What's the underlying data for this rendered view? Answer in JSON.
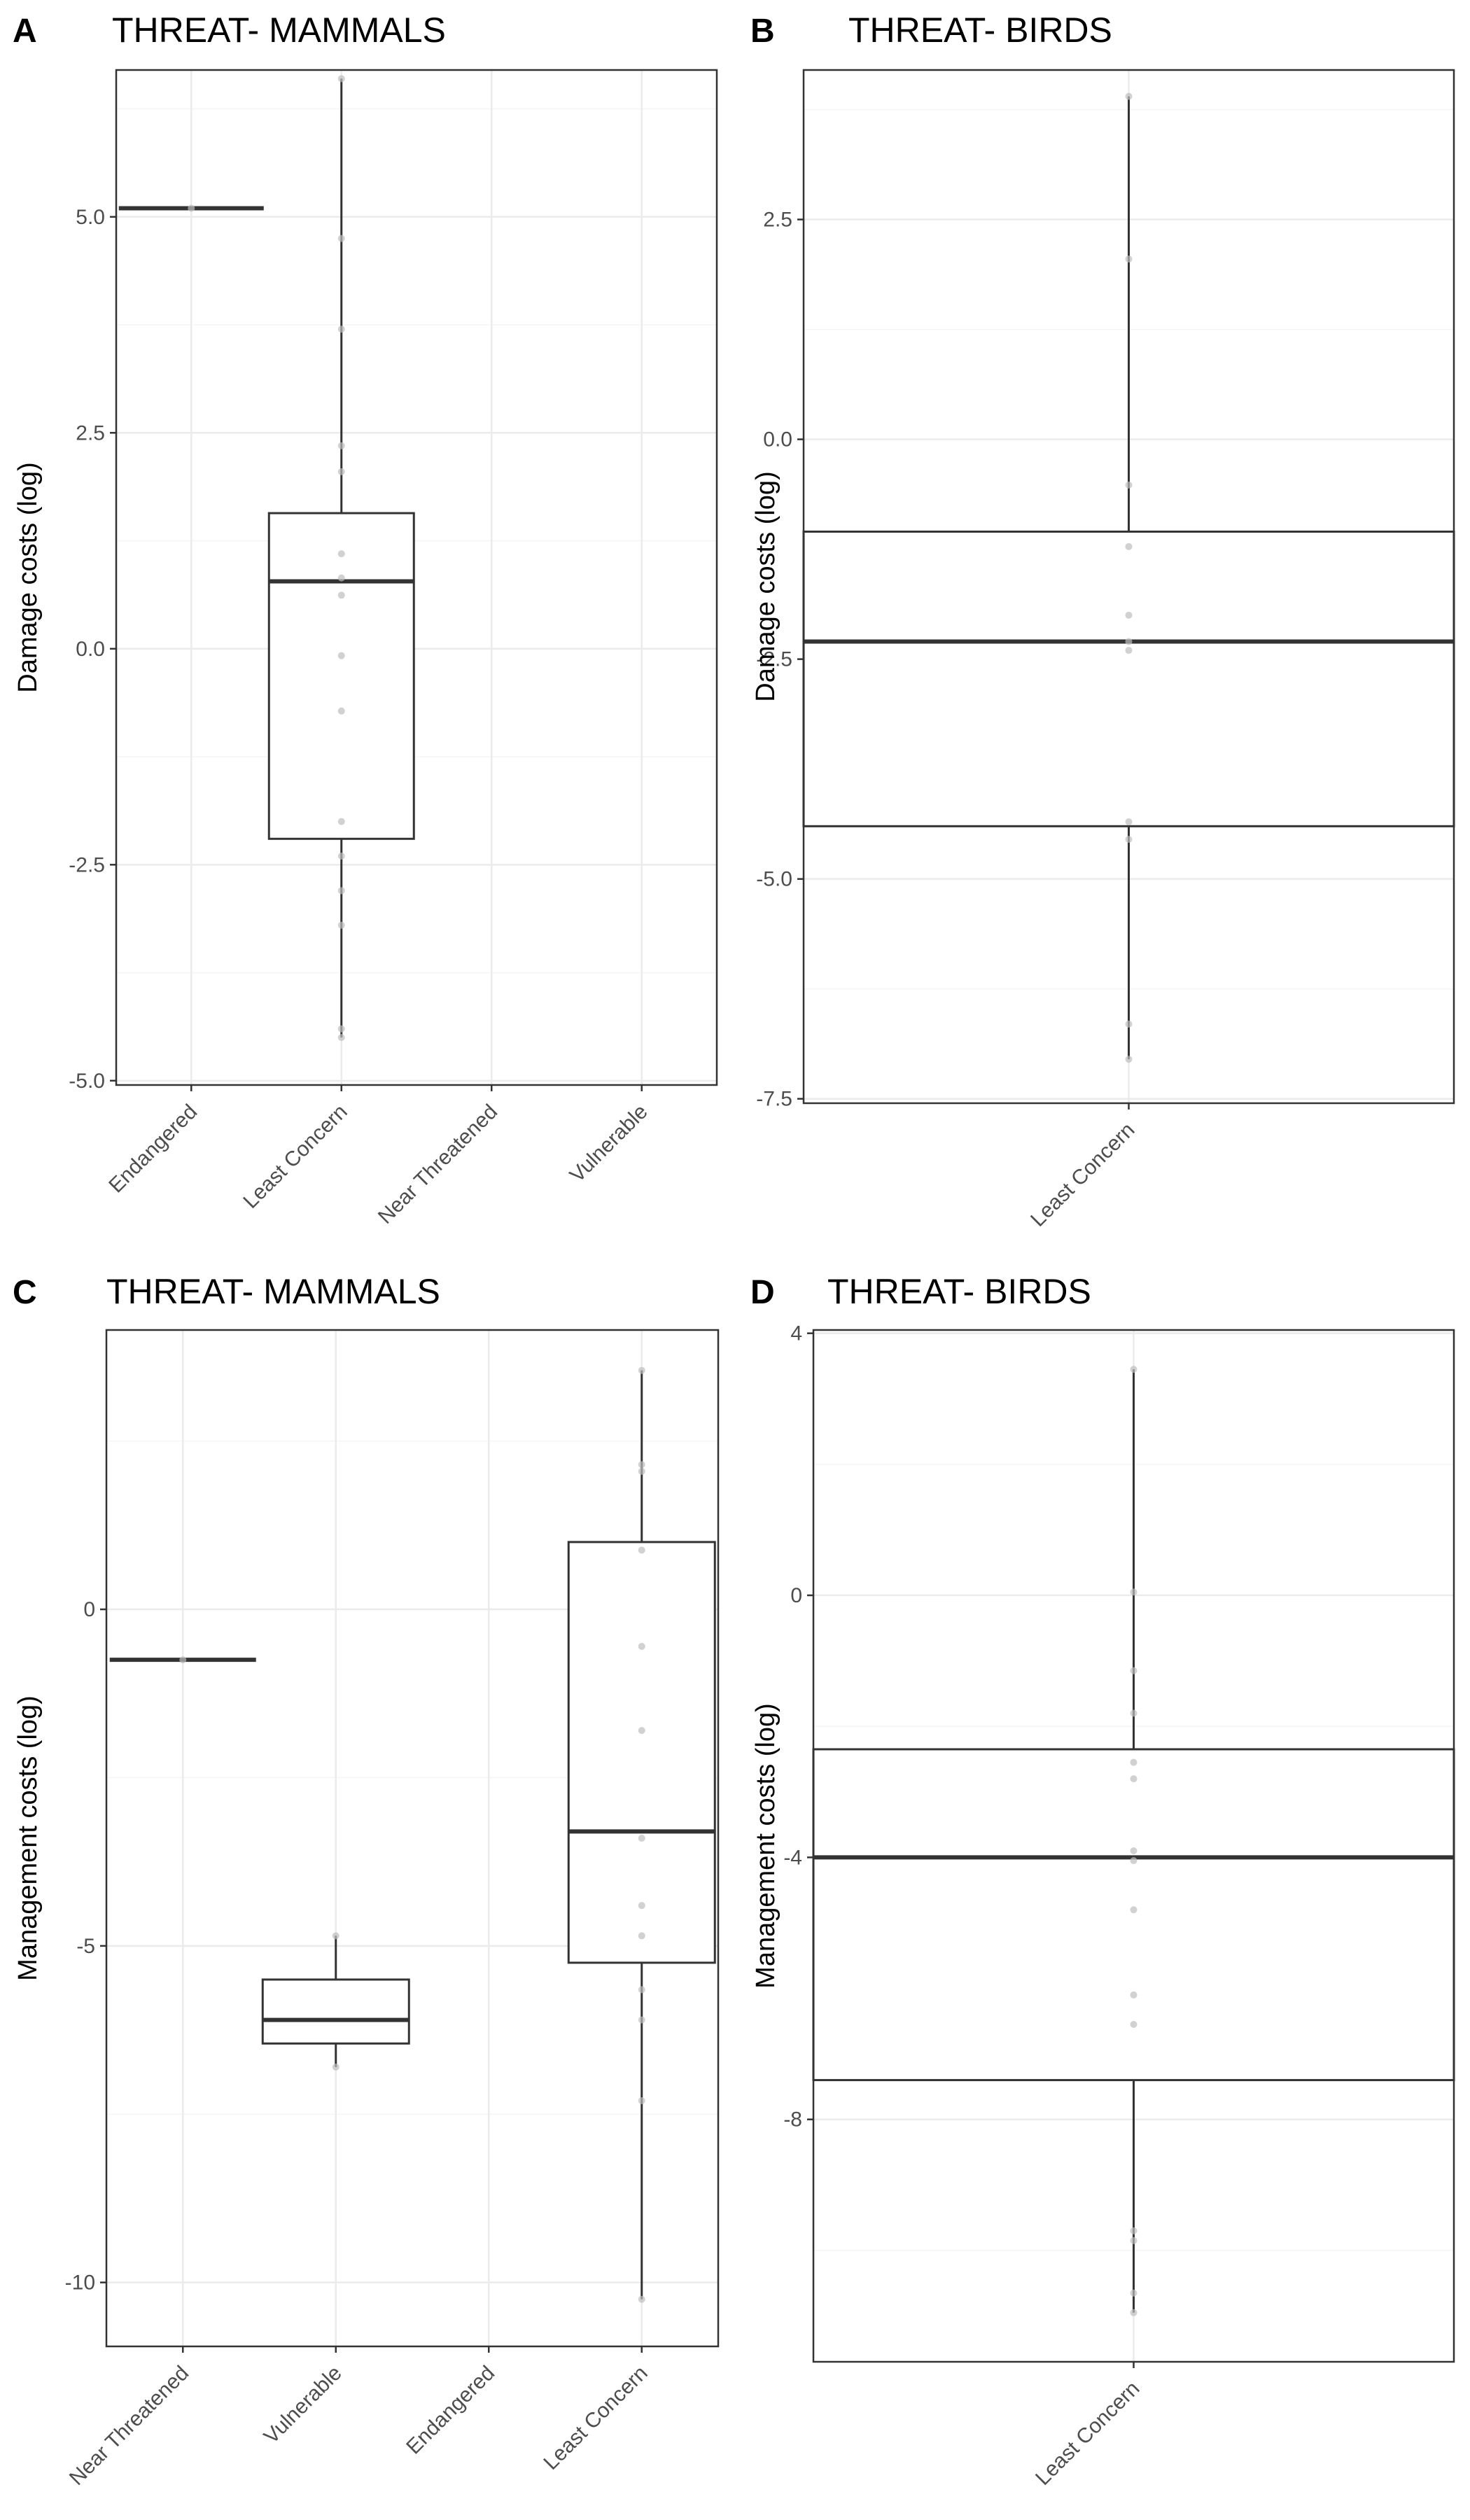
{
  "chart_data": [
    {
      "type": "box",
      "panel_label": "A",
      "title": "THREAT- MAMMALS",
      "xlabel": "",
      "ylabel": "Damage costs (log)",
      "ylim": [
        -5.05,
        6.7
      ],
      "yticks": [
        5.0,
        2.5,
        0.0,
        -2.5,
        -5.0
      ],
      "ytick_labels": [
        "5.0",
        "2.5",
        "0.0",
        "-2.5",
        "-5.0"
      ],
      "categories": [
        "Endangered",
        "Least Concern",
        "Near Threatened",
        "Vulnerable"
      ],
      "boxes": [
        {
          "category": "Endangered",
          "q1": 5.1,
          "median": 5.1,
          "q3": 5.1,
          "whisker_low": 5.1,
          "whisker_high": 5.1,
          "points": [
            5.1
          ]
        },
        {
          "category": "Least Concern",
          "q1": -2.2,
          "median": 0.78,
          "q3": 1.57,
          "whisker_low": -4.5,
          "whisker_high": 6.6,
          "points": [
            6.6,
            4.75,
            3.7,
            2.35,
            2.05,
            1.1,
            0.82,
            0.62,
            -0.08,
            -0.72,
            -2.0,
            -2.4,
            -2.8,
            -3.2,
            -4.4,
            -4.5
          ]
        },
        {
          "category": "Near Threatened",
          "q1": null,
          "median": null,
          "q3": null,
          "whisker_low": null,
          "whisker_high": null,
          "points": []
        },
        {
          "category": "Vulnerable",
          "q1": null,
          "median": null,
          "q3": null,
          "whisker_low": null,
          "whisker_high": null,
          "points": []
        }
      ]
    },
    {
      "type": "box",
      "panel_label": "B",
      "title": "THREAT- BIRDS",
      "xlabel": "",
      "ylabel": "Damage costs (log)",
      "ylim": [
        -7.55,
        4.2
      ],
      "yticks": [
        2.5,
        0.0,
        -2.5,
        -5.0,
        -7.5
      ],
      "ytick_labels": [
        "2.5",
        "0.0",
        "-2.5",
        "-5.0",
        "-7.5"
      ],
      "categories": [
        "Least Concern"
      ],
      "boxes": [
        {
          "category": "Least Concern",
          "q1": -4.4,
          "median": -2.3,
          "q3": -1.05,
          "whisker_low": -7.05,
          "whisker_high": 3.9,
          "points": [
            3.9,
            2.05,
            -0.52,
            -1.22,
            -2.0,
            -2.3,
            -2.4,
            -4.35,
            -4.55,
            -6.65,
            -7.05
          ]
        }
      ]
    },
    {
      "type": "box",
      "panel_label": "C",
      "title": "THREAT- MAMMALS",
      "xlabel": "",
      "ylabel": "Management costs (log)",
      "ylim": [
        -10.95,
        4.15
      ],
      "yticks": [
        0,
        -5,
        -10
      ],
      "ytick_labels": [
        "0",
        "-5",
        "-10"
      ],
      "categories": [
        "Near Threatened",
        "Vulnerable",
        "Endangered",
        "Least Concern"
      ],
      "boxes": [
        {
          "category": "Near Threatened",
          "q1": -0.75,
          "median": -0.75,
          "q3": -0.75,
          "whisker_low": -0.75,
          "whisker_high": -0.75,
          "points": [
            -0.75
          ]
        },
        {
          "category": "Vulnerable",
          "q1": -6.45,
          "median": -6.1,
          "q3": -5.5,
          "whisker_low": -6.8,
          "whisker_high": -4.85,
          "points": [
            -4.85,
            -6.8
          ]
        },
        {
          "category": "Endangered",
          "q1": null,
          "median": null,
          "q3": null,
          "whisker_low": null,
          "whisker_high": null,
          "points": []
        },
        {
          "category": "Least Concern",
          "q1": -5.25,
          "median": -3.3,
          "q3": 1.0,
          "whisker_low": -10.25,
          "whisker_high": 3.55,
          "points": [
            3.55,
            2.15,
            2.05,
            0.88,
            -0.55,
            -1.8,
            -3.4,
            -4.4,
            -4.85,
            -5.65,
            -6.1,
            -7.3,
            -10.25
          ]
        }
      ]
    },
    {
      "type": "box",
      "panel_label": "D",
      "title": "THREAT- BIRDS",
      "xlabel": "",
      "ylabel": "Management costs (log)",
      "ylim": [
        -11.7,
        4.05
      ],
      "yticks": [
        4,
        0,
        -4,
        -8
      ],
      "ytick_labels": [
        "4",
        "0",
        "-4",
        "-8"
      ],
      "categories": [
        "Least Concern"
      ],
      "boxes": [
        {
          "category": "Least Concern",
          "q1": -7.4,
          "median": -4.0,
          "q3": -2.35,
          "whisker_low": -10.95,
          "whisker_high": 3.45,
          "points": [
            3.45,
            0.05,
            -1.15,
            -1.8,
            -2.55,
            -2.8,
            -3.9,
            -4.05,
            -4.8,
            -6.1,
            -6.55,
            -9.7,
            -9.85,
            -10.65,
            -10.95
          ]
        }
      ]
    }
  ],
  "colors": {
    "background": "#ffffff",
    "panel_border": "#333333",
    "grid_major": "#ebebeb",
    "grid_minor": "#f5f5f5",
    "box_stroke": "#333333",
    "point": "#bdbdbd",
    "tick_text": "#4d4d4d"
  }
}
